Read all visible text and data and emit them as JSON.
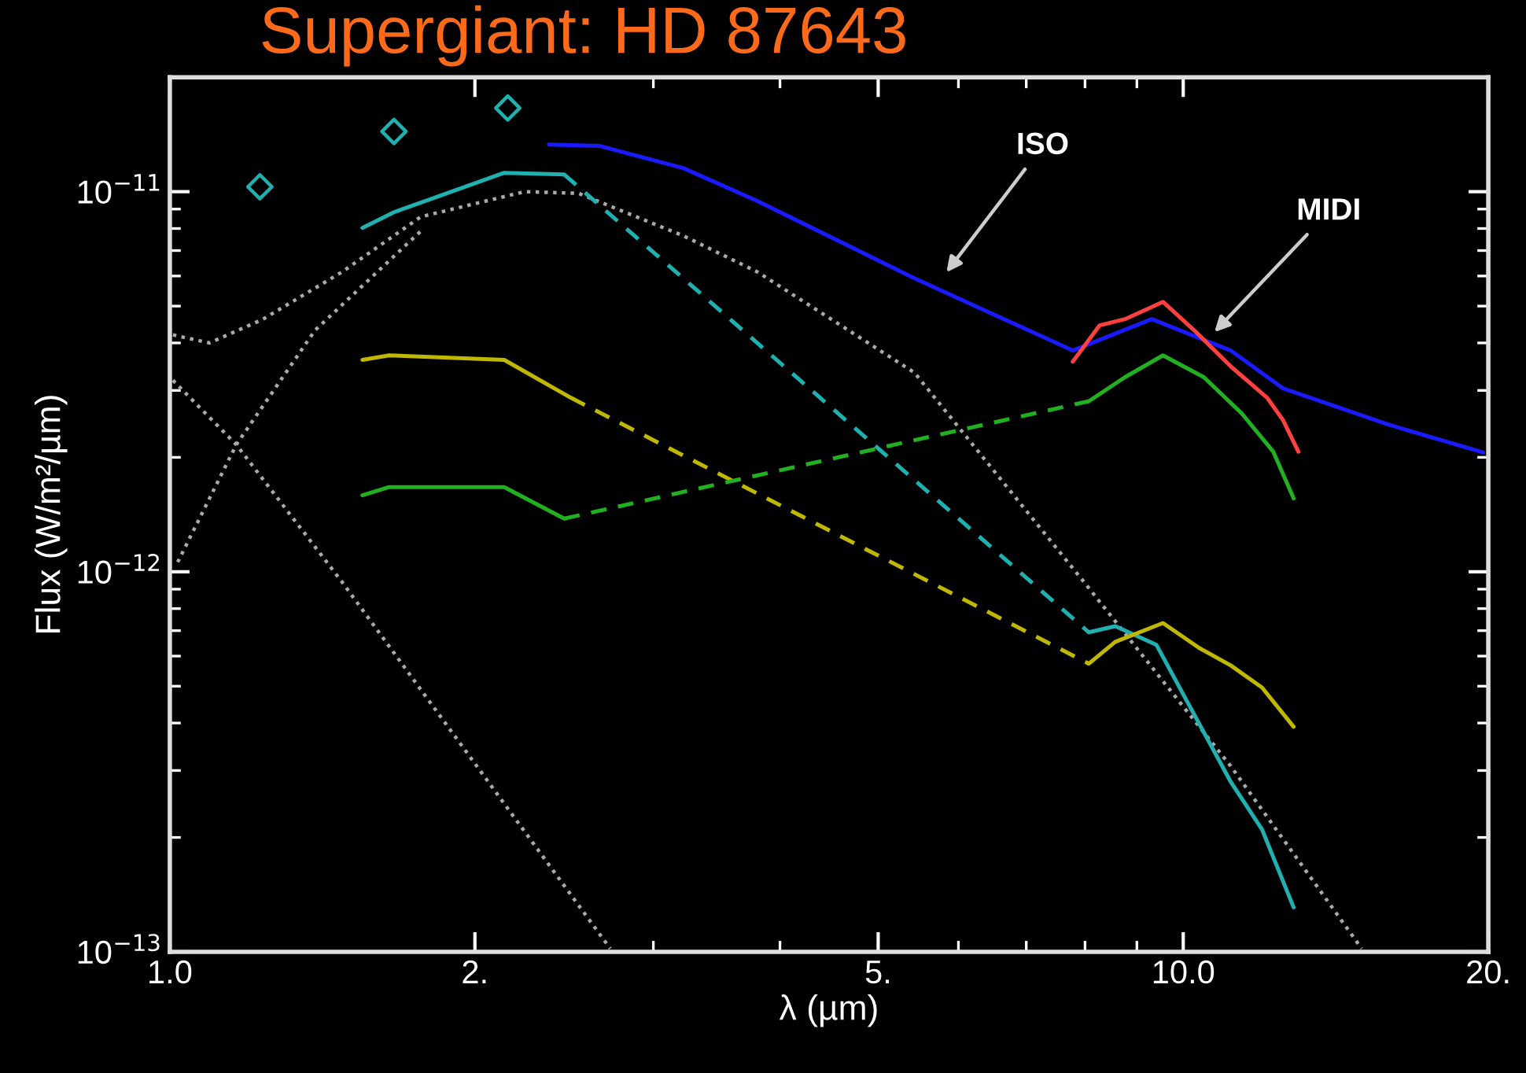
{
  "chart_data": {
    "type": "line",
    "title": "Supergiant: HD 87643",
    "xlabel": "λ (µm)",
    "ylabel": "Flux (W/m²/µm)",
    "log": "xy",
    "xlim": [
      1,
      20
    ],
    "ylim": [
      1e-13,
      2e-11
    ],
    "xticks": [
      {
        "value": 1,
        "label": "1.0"
      },
      {
        "value": 2,
        "label": "2."
      },
      {
        "value": 5,
        "label": "5."
      },
      {
        "value": 10,
        "label": "10.0"
      },
      {
        "value": 20,
        "label": "20."
      }
    ],
    "yticks": [
      {
        "value": 1e-13,
        "label": "10$^{−13}$"
      },
      {
        "value": 1e-12,
        "label": "10$^{−12}$"
      },
      {
        "value": 1e-11,
        "label": "10$^{−11}$"
      }
    ],
    "grid": false,
    "legend": false,
    "annotations": [
      "ISO",
      "MIDI"
    ],
    "series": [
      {
        "color": "#1a1aff",
        "line_style": "solid",
        "x": [
          2.366,
          2.653,
          3.21,
          3.8,
          5.43,
          7.78,
          9.31,
          11.14,
          12.54,
          15.93,
          19.77
        ],
        "values": [
          1.33e-11,
          1.32e-11,
          1.154e-11,
          9.45e-12,
          5.92e-12,
          3.82e-12,
          4.62e-12,
          3.82e-12,
          3.04e-12,
          2.44e-12,
          2.06e-12
        ]
      },
      {
        "color": "#ff4040",
        "line_style": "solid",
        "x": [
          7.78,
          8.27,
          8.76,
          9.55,
          10.25,
          11.14,
          12.1,
          12.54,
          12.99
        ],
        "values": [
          3.57e-12,
          4.45e-12,
          4.62e-12,
          5.13e-12,
          4.32e-12,
          3.47e-12,
          2.87e-12,
          2.51e-12,
          2.07e-12
        ]
      },
      {
        "color": "#aaaaaa",
        "line_style": "dotted",
        "x": [
          1.007,
          1.094,
          1.236,
          1.479,
          1.769,
          2.239,
          2.531,
          3.21,
          3.8,
          5.43,
          7.98,
          11.14,
          15.0
        ],
        "values": [
          4.2e-12,
          4e-12,
          4.62e-12,
          6.15e-12,
          8.59e-12,
          1e-11,
          9.9e-12,
          7.66e-12,
          6.15e-12,
          3.34e-12,
          9.4e-13,
          3.08e-13,
          1.02e-13
        ]
      },
      {
        "color": "#aaaaaa",
        "line_style": "dotted",
        "x": [
          1.018,
          1.163,
          1.391,
          1.769
        ],
        "values": [
          1.06e-12,
          2.16e-12,
          4.32e-12,
          7.88e-12
        ]
      },
      {
        "color": "#aaaaaa",
        "line_style": "dotted",
        "x": [
          1.007,
          1.163,
          1.479,
          2.72
        ],
        "values": [
          3.19e-12,
          2.16e-12,
          9.4e-13,
          1.02e-13
        ]
      },
      {
        "color": "#20b0b0",
        "line_style": "solid",
        "x": [
          1.549,
          1.664,
          2.138,
          2.45
        ],
        "values": [
          8.03e-12,
          8.83e-12,
          1.121e-11,
          1.11e-11
        ]
      },
      {
        "color": "#20b0b0",
        "line_style": "dashed",
        "x": [
          2.45,
          8.07
        ],
        "values": [
          1.11e-11,
          6.93e-13
        ]
      },
      {
        "color": "#20b0b0",
        "line_style": "solid",
        "x": [
          8.07,
          8.57,
          9.41,
          10.37,
          11.14,
          11.96,
          12.85
        ],
        "values": [
          6.93e-13,
          7.19e-13,
          6.42e-13,
          3.98e-13,
          2.8e-13,
          2.1e-13,
          1.31e-13
        ]
      },
      {
        "color": "#c0b800",
        "line_style": "solid",
        "x": [
          1.549,
          1.646,
          2.138,
          2.487
        ],
        "values": [
          3.61e-12,
          3.71e-12,
          3.61e-12,
          2.87e-12
        ]
      },
      {
        "color": "#c0b800",
        "line_style": "dashed",
        "x": [
          2.487,
          8.07
        ],
        "values": [
          2.87e-12,
          5.73e-13
        ]
      },
      {
        "color": "#c0b800",
        "line_style": "solid",
        "x": [
          8.07,
          8.57,
          9.55,
          10.37,
          11.14,
          11.96,
          12.85
        ],
        "values": [
          5.73e-13,
          6.54e-13,
          7.33e-13,
          6.3e-13,
          5.67e-13,
          4.96e-13,
          3.91e-13
        ]
      },
      {
        "color": "#20b020",
        "line_style": "solid",
        "x": [
          1.549,
          1.646,
          2.138,
          2.45
        ],
        "values": [
          1.59e-12,
          1.67e-12,
          1.67e-12,
          1.38e-12
        ]
      },
      {
        "color": "#20b020",
        "line_style": "dashed",
        "x": [
          2.45,
          8.07
        ],
        "values": [
          1.38e-12,
          2.81e-12
        ]
      },
      {
        "color": "#20b020",
        "line_style": "solid",
        "x": [
          8.07,
          8.76,
          9.55,
          10.48,
          11.42,
          12.27,
          12.85
        ],
        "values": [
          2.81e-12,
          3.25e-12,
          3.71e-12,
          3.25e-12,
          2.61e-12,
          2.07e-12,
          1.56e-12
        ]
      },
      {
        "type": "scatter",
        "color": "#20b0b0",
        "marker": "diamond",
        "x": [
          1.227,
          1.664,
          2.155
        ],
        "values": [
          1.03e-11,
          1.44e-11,
          1.66e-11
        ]
      }
    ]
  }
}
